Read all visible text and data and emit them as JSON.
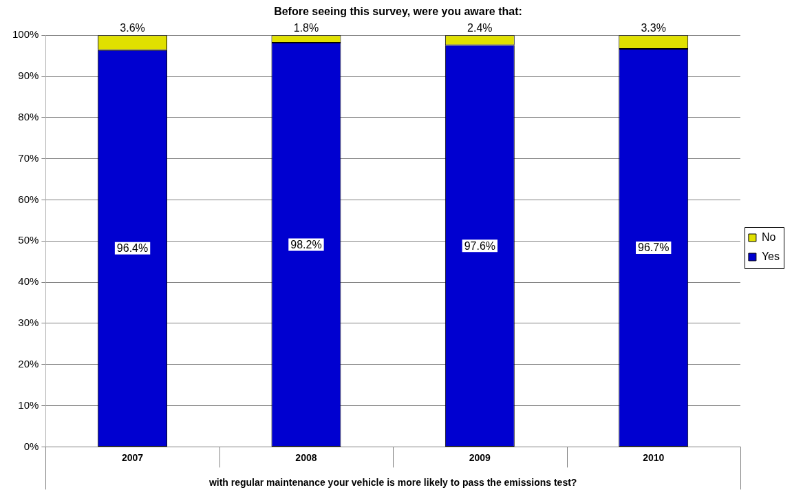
{
  "chart_data": {
    "type": "bar",
    "title": "Before seeing this survey, were you aware that:",
    "xlabel": "with regular maintenance your vehicle is more likely to pass the emissions test?",
    "categories": [
      "2007",
      "2008",
      "2009",
      "2010"
    ],
    "series": [
      {
        "name": "Yes",
        "color": "#0000d0",
        "values": [
          96.4,
          98.2,
          97.6,
          96.7
        ],
        "value_labels": [
          "96.4%",
          "98.2%",
          "97.6%",
          "96.7%"
        ]
      },
      {
        "name": "No",
        "color": "#e0e000",
        "values": [
          3.6,
          1.8,
          2.4,
          3.3
        ],
        "value_labels": [
          "3.6%",
          "1.8%",
          "2.4%",
          "3.3%"
        ]
      }
    ],
    "stacked": true,
    "ylim": [
      0,
      100
    ],
    "yticks": [
      {
        "value": 0,
        "label": "0%"
      },
      {
        "value": 10,
        "label": "10%"
      },
      {
        "value": 20,
        "label": "20%"
      },
      {
        "value": 30,
        "label": "30%"
      },
      {
        "value": 40,
        "label": "40%"
      },
      {
        "value": 50,
        "label": "50%"
      },
      {
        "value": 60,
        "label": "60%"
      },
      {
        "value": 70,
        "label": "70%"
      },
      {
        "value": 80,
        "label": "80%"
      },
      {
        "value": 90,
        "label": "90%"
      },
      {
        "value": 100,
        "label": "100%"
      }
    ],
    "grid": "y",
    "legend": "right"
  }
}
